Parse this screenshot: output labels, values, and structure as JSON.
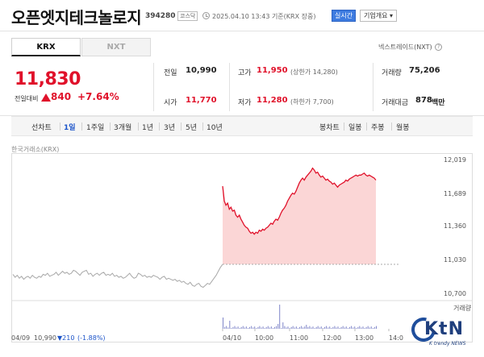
{
  "header": {
    "stock_name": "오픈엣지테크놀로지",
    "stock_code": "394280",
    "market": "코스닥",
    "timestamp": "2025.04.10 13:43 기준(KRX 장중)",
    "realtime_label": "실시간",
    "company_info_label": "기업개요 ▾"
  },
  "tabs": {
    "krx": "KRX",
    "nxt": "NXT"
  },
  "nxt_link": "넥스트레이드(NXT)",
  "price": {
    "current": "11,830",
    "change_label": "전일대비",
    "change_amount": "840",
    "change_pct": "+7.64%"
  },
  "stats": {
    "prev_close": {
      "label": "전일",
      "value": "10,990"
    },
    "open": {
      "label": "시가",
      "value": "11,770"
    },
    "high": {
      "label": "고가",
      "value": "11,950",
      "sub": "(상한가 14,280)"
    },
    "low": {
      "label": "저가",
      "value": "11,280",
      "sub": "(하한가 7,700)"
    },
    "volume": {
      "label": "거래량",
      "value": "75,206"
    },
    "amount": {
      "label": "거래대금",
      "value": "878",
      "unit": "백만"
    }
  },
  "periods": {
    "line_chart": "선차트",
    "items": [
      "1일",
      "1주일",
      "3개월",
      "1년",
      "3년",
      "5년",
      "10년"
    ],
    "active": "1일",
    "candle_chart": "봉차트",
    "candle_items": [
      "일봉",
      "주봉",
      "월봉"
    ]
  },
  "source": "한국거래소(KRX)",
  "chart_data": {
    "type": "line",
    "y_ticks": [
      "12,019",
      "11,689",
      "11,360",
      "11,030",
      "10,700"
    ],
    "ylim": [
      10700,
      12019
    ],
    "x_ticks": [
      "04/10",
      "10:00",
      "11:00",
      "12:00",
      "13:00",
      "14:0"
    ],
    "prev_close": 10990,
    "prev_session_label": "04/09",
    "prev_session_value": "10,990",
    "prev_session_change": "▼210",
    "prev_session_change_pct": "(-1.88%)",
    "volume_legend": "거래량",
    "prev_day_series": [
      10890,
      10860,
      10880,
      10850,
      10870,
      10840,
      10860,
      10870,
      10850,
      10880,
      10860,
      10850,
      10870,
      10860,
      10890,
      10880,
      10900,
      10870,
      10880,
      10890,
      10910,
      10880,
      10900,
      10920,
      10900,
      10910,
      10890,
      10900,
      10930,
      10920,
      10900,
      10880,
      10910,
      10920,
      10930,
      10890,
      10900,
      10870,
      10890,
      10900,
      10880,
      10900,
      10910,
      10880,
      10890,
      10880,
      10900,
      10870,
      10880,
      10860,
      10870,
      10850,
      10860,
      10880,
      10900,
      10870,
      10850,
      10860,
      10900,
      10890,
      10870,
      10880,
      10860,
      10870,
      10860,
      10880,
      10870,
      10860,
      10840,
      10860,
      10870,
      10840,
      10850,
      10840,
      10830,
      10840,
      10820,
      10830,
      10810,
      10820,
      10800,
      10790,
      10810,
      10780,
      10770,
      10790,
      10800,
      10770,
      10760,
      10780,
      10800,
      10790,
      10820,
      10850,
      10880,
      10920,
      10960,
      10990
    ],
    "today_series": [
      11770,
      11620,
      11580,
      11600,
      11540,
      11560,
      11520,
      11530,
      11480,
      11460,
      11480,
      11440,
      11410,
      11380,
      11360,
      11350,
      11320,
      11300,
      11310,
      11290,
      11310,
      11300,
      11330,
      11320,
      11340,
      11330,
      11350,
      11360,
      11380,
      11400,
      11390,
      11420,
      11440,
      11430,
      11460,
      11500,
      11530,
      11550,
      11580,
      11620,
      11650,
      11680,
      11700,
      11690,
      11720,
      11760,
      11800,
      11830,
      11850,
      11830,
      11860,
      11880,
      11900,
      11920,
      11950,
      11930,
      11900,
      11910,
      11880,
      11860,
      11870,
      11850,
      11830,
      11840,
      11820,
      11810,
      11790,
      11800,
      11780,
      11760,
      11780,
      11790,
      11800,
      11810,
      11830,
      11820,
      11840,
      11850,
      11860,
      11870,
      11880,
      11870,
      11880,
      11880,
      11890,
      11900,
      11880,
      11870,
      11880,
      11870,
      11860,
      11850,
      11830
    ]
  },
  "logo": {
    "text": "KtN",
    "sub": "K trendy NEWS"
  }
}
